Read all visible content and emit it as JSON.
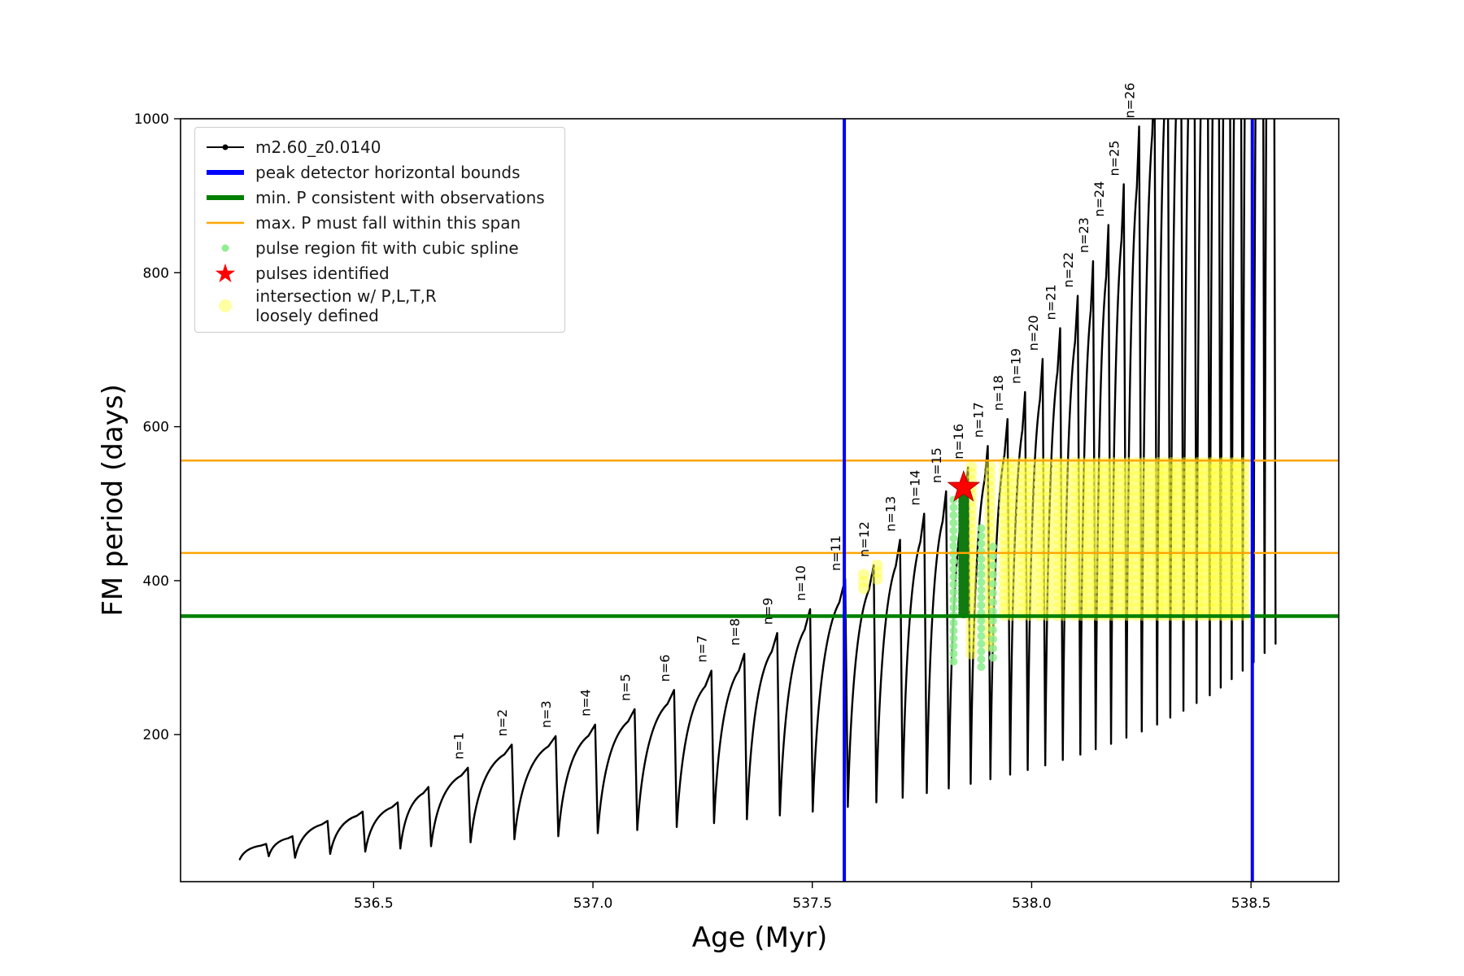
{
  "figure": {
    "xlabel": "Age (Myr)",
    "ylabel": "FM period (days)",
    "x_ticks": [
      536.5,
      537.0,
      537.5,
      538.0,
      538.5
    ],
    "y_ticks": [
      200,
      400,
      600,
      800,
      1000
    ],
    "xlim": [
      536.06,
      538.7
    ],
    "ylim": [
      9,
      1000
    ],
    "background": "#ffffff"
  },
  "legend": {
    "items": [
      {
        "label": "m2.60_z0.0140",
        "marker": "line-dot",
        "color": "#000000"
      },
      {
        "label": "peak detector horizontal bounds",
        "marker": "thick-line",
        "color": "#0000ff"
      },
      {
        "label": "min. P consistent with observations",
        "marker": "thick-line",
        "color": "#008000"
      },
      {
        "label": "max. P must fall within this span",
        "marker": "line",
        "color": "#ffa500"
      },
      {
        "label": "pulse region fit with cubic spline",
        "marker": "dot",
        "color": "#90ee90"
      },
      {
        "label": "pulses identified",
        "marker": "star",
        "color": "#ff0000"
      },
      {
        "label": "intersection w/ P,L,T,R\nloosely defined",
        "marker": "big-dot",
        "color": "#ffff99"
      }
    ]
  },
  "chart_data": {
    "type": "line",
    "series_name": "m2.60_z0.0140",
    "series_color": "#000000",
    "xlabel": "Age (Myr)",
    "ylabel": "FM period (days)",
    "xlim": [
      536.06,
      538.7
    ],
    "ylim": [
      9,
      1000
    ],
    "grid": false,
    "legend_position": "upper-left",
    "teeth_note": "sawtooth pulses: x = age of peak (Myr), p = peak FM period (days), t = trough period at start of rise (days), n = pulse label",
    "teeth": [
      {
        "x": 536.255,
        "p": 58,
        "t": 38
      },
      {
        "x": 536.315,
        "p": 68,
        "t": 42
      },
      {
        "x": 536.395,
        "p": 88,
        "t": 40
      },
      {
        "x": 536.475,
        "p": 100,
        "t": 45
      },
      {
        "x": 536.555,
        "p": 112,
        "t": 48
      },
      {
        "x": 536.625,
        "p": 132,
        "t": 52
      },
      {
        "x": 536.715,
        "p": 157,
        "t": 55,
        "n": "n=1"
      },
      {
        "x": 536.815,
        "p": 187,
        "t": 60,
        "n": "n=2"
      },
      {
        "x": 536.915,
        "p": 198,
        "t": 64,
        "n": "n=3"
      },
      {
        "x": 537.005,
        "p": 213,
        "t": 68,
        "n": "n=4"
      },
      {
        "x": 537.095,
        "p": 233,
        "t": 72,
        "n": "n=5"
      },
      {
        "x": 537.185,
        "p": 258,
        "t": 76,
        "n": "n=6"
      },
      {
        "x": 537.27,
        "p": 283,
        "t": 80,
        "n": "n=7"
      },
      {
        "x": 537.345,
        "p": 305,
        "t": 85,
        "n": "n=8"
      },
      {
        "x": 537.42,
        "p": 332,
        "t": 90,
        "n": "n=9"
      },
      {
        "x": 537.495,
        "p": 363,
        "t": 95,
        "n": "n=10"
      },
      {
        "x": 537.575,
        "p": 402,
        "t": 100,
        "n": "n=11"
      },
      {
        "x": 537.64,
        "p": 420,
        "t": 106,
        "n": "n=12"
      },
      {
        "x": 537.7,
        "p": 453,
        "t": 112,
        "n": "n=13"
      },
      {
        "x": 537.755,
        "p": 487,
        "t": 118,
        "n": "n=14"
      },
      {
        "x": 537.805,
        "p": 516,
        "t": 124,
        "n": "n=15"
      },
      {
        "x": 537.855,
        "p": 547,
        "t": 130,
        "n": "n=16"
      },
      {
        "x": 537.9,
        "p": 575,
        "t": 136,
        "n": "n=17"
      },
      {
        "x": 537.945,
        "p": 610,
        "t": 142,
        "n": "n=18"
      },
      {
        "x": 537.985,
        "p": 645,
        "t": 148,
        "n": "n=19"
      },
      {
        "x": 538.025,
        "p": 688,
        "t": 154,
        "n": "n=20"
      },
      {
        "x": 538.065,
        "p": 728,
        "t": 160,
        "n": "n=21"
      },
      {
        "x": 538.105,
        "p": 770,
        "t": 167,
        "n": "n=22"
      },
      {
        "x": 538.14,
        "p": 815,
        "t": 174,
        "n": "n=23"
      },
      {
        "x": 538.175,
        "p": 862,
        "t": 181,
        "n": "n=24"
      },
      {
        "x": 538.21,
        "p": 915,
        "t": 188,
        "n": "n=25"
      },
      {
        "x": 538.245,
        "p": 990,
        "t": 196,
        "n": "n=26"
      },
      {
        "x": 538.28,
        "p": 1065,
        "t": 204
      },
      {
        "x": 538.31,
        "p": 1140,
        "t": 213
      },
      {
        "x": 538.34,
        "p": 1215,
        "t": 222
      },
      {
        "x": 538.37,
        "p": 1290,
        "t": 231
      },
      {
        "x": 538.4,
        "p": 1365,
        "t": 241
      },
      {
        "x": 538.425,
        "p": 1440,
        "t": 251
      },
      {
        "x": 538.45,
        "p": 1510,
        "t": 261
      },
      {
        "x": 538.475,
        "p": 1580,
        "t": 272
      },
      {
        "x": 538.5,
        "p": 1650,
        "t": 283
      },
      {
        "x": 538.525,
        "p": 1720,
        "t": 294
      },
      {
        "x": 538.55,
        "p": 1790,
        "t": 306
      }
    ],
    "hlines": [
      {
        "y": 354,
        "color": "#008000",
        "width": 4.5,
        "name": "min-p-observations-line"
      },
      {
        "y": 436,
        "color": "#ffa500",
        "width": 2.5,
        "name": "max-p-lower-bound-line"
      },
      {
        "y": 556,
        "color": "#ffa500",
        "width": 2.5,
        "name": "max-p-upper-bound-line"
      }
    ],
    "vlines": [
      {
        "x": 537.573,
        "color": "#0000ff",
        "width": 4,
        "name": "peak-detector-left-bound"
      },
      {
        "x": 538.503,
        "color": "#0000ff",
        "width": 4,
        "name": "peak-detector-right-bound"
      }
    ],
    "star": {
      "x": 537.845,
      "y": 521,
      "outer": 20,
      "inner": 8,
      "color": "#ff0000"
    },
    "yellow_region": {
      "x_min": 537.93,
      "x_max": 538.48,
      "y_min": 355,
      "y_max": 556,
      "step": 9,
      "r": 7,
      "color": "#ffff3d",
      "opacity": 0.5
    },
    "yellow_streaks": [
      {
        "x": 537.862,
        "y0": 305,
        "y1": 556
      },
      {
        "x": 537.905,
        "y0": 315,
        "y1": 556
      },
      {
        "x": 537.617,
        "y0": 390,
        "y1": 408
      },
      {
        "x": 537.648,
        "y0": 402,
        "y1": 420
      }
    ],
    "green_streaks": [
      {
        "x": 537.822,
        "y0": 295,
        "y1": 505,
        "step": 10,
        "r": 5,
        "color": "#90ee90",
        "opacity": 0.9
      },
      {
        "x": 537.845,
        "y0": 358,
        "y1": 512,
        "step": 5,
        "r": 6.5,
        "color": "#117a11",
        "opacity": 1
      },
      {
        "x": 537.885,
        "y0": 288,
        "y1": 470,
        "step": 10,
        "r": 5,
        "color": "#90ee90",
        "opacity": 0.9
      },
      {
        "x": 537.912,
        "y0": 300,
        "y1": 452,
        "step": 12,
        "r": 5,
        "color": "#90ee90",
        "opacity": 0.85
      }
    ]
  }
}
